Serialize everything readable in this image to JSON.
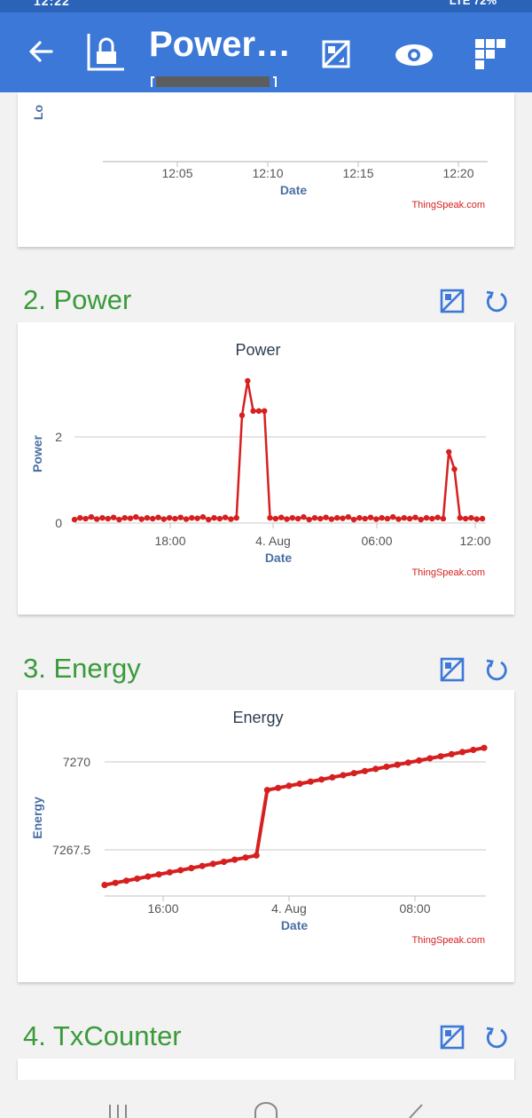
{
  "status": {
    "time": "12:22",
    "right": "LTE 72%"
  },
  "appbar": {
    "title": "Power…",
    "subtitle": ""
  },
  "icons": {
    "back": "arrow-back-icon",
    "lock": "lock-icon",
    "export": "export-icon",
    "view": "eye-icon",
    "apps": "apps-icon",
    "refresh": "refresh-icon"
  },
  "colors": {
    "appbar": "#3c78d8",
    "section_title": "#3a9a3a",
    "series": "#d62020"
  },
  "card1": {
    "ylabel_fragment": "Lo",
    "xlabel": "Date",
    "credit": "ThingSpeak.com",
    "ticks": [
      "12:05",
      "12:10",
      "12:15",
      "12:20"
    ]
  },
  "sections": [
    {
      "title": "2. Power"
    },
    {
      "title": "3. Energy"
    },
    {
      "title": "4. TxCounter"
    }
  ],
  "chart_data": [
    {
      "type": "line",
      "title": "Power",
      "xlabel": "Date",
      "ylabel": "Power",
      "credit": "ThingSpeak.com",
      "x_ticks": [
        "18:00",
        "4. Aug",
        "06:00",
        "12:00"
      ],
      "y_ticks": [
        "0",
        "2"
      ],
      "ylim": [
        0,
        3.4
      ],
      "series": [
        {
          "color": "#d62020",
          "values": [
            0.08,
            0.12,
            0.1,
            0.14,
            0.09,
            0.12,
            0.1,
            0.13,
            0.08,
            0.12,
            0.11,
            0.14,
            0.09,
            0.12,
            0.1,
            0.13,
            0.09,
            0.12,
            0.1,
            0.13,
            0.09,
            0.12,
            0.11,
            0.14,
            0.08,
            0.12,
            0.1,
            0.13,
            0.09,
            0.12,
            2.5,
            3.3,
            2.6,
            2.6,
            2.6,
            0.12,
            0.1,
            0.13,
            0.09,
            0.12,
            0.1,
            0.14,
            0.08,
            0.12,
            0.1,
            0.13,
            0.09,
            0.12,
            0.11,
            0.14,
            0.08,
            0.12,
            0.1,
            0.13,
            0.09,
            0.12,
            0.1,
            0.14,
            0.09,
            0.12,
            0.1,
            0.13,
            0.08,
            0.12,
            0.1,
            0.13,
            0.1,
            1.65,
            1.25,
            0.12,
            0.1,
            0.12,
            0.09,
            0.1
          ]
        }
      ]
    },
    {
      "type": "line",
      "title": "Energy",
      "xlabel": "Date",
      "ylabel": "Energy",
      "credit": "ThingSpeak.com",
      "x_ticks": [
        "16:00",
        "4. Aug",
        "08:00"
      ],
      "y_ticks": [
        "7267.5",
        "7270"
      ],
      "ylim": [
        7266.3,
        7270.8
      ],
      "series": [
        {
          "color": "#d62020",
          "values": [
            7266.5,
            7266.56,
            7266.62,
            7266.68,
            7266.74,
            7266.8,
            7266.86,
            7266.92,
            7266.98,
            7267.04,
            7267.1,
            7267.16,
            7267.22,
            7267.28,
            7267.34,
            7269.2,
            7269.26,
            7269.32,
            7269.38,
            7269.44,
            7269.5,
            7269.56,
            7269.62,
            7269.68,
            7269.74,
            7269.8,
            7269.86,
            7269.92,
            7269.98,
            7270.04,
            7270.1,
            7270.16,
            7270.22,
            7270.28,
            7270.34,
            7270.4
          ]
        }
      ]
    }
  ]
}
